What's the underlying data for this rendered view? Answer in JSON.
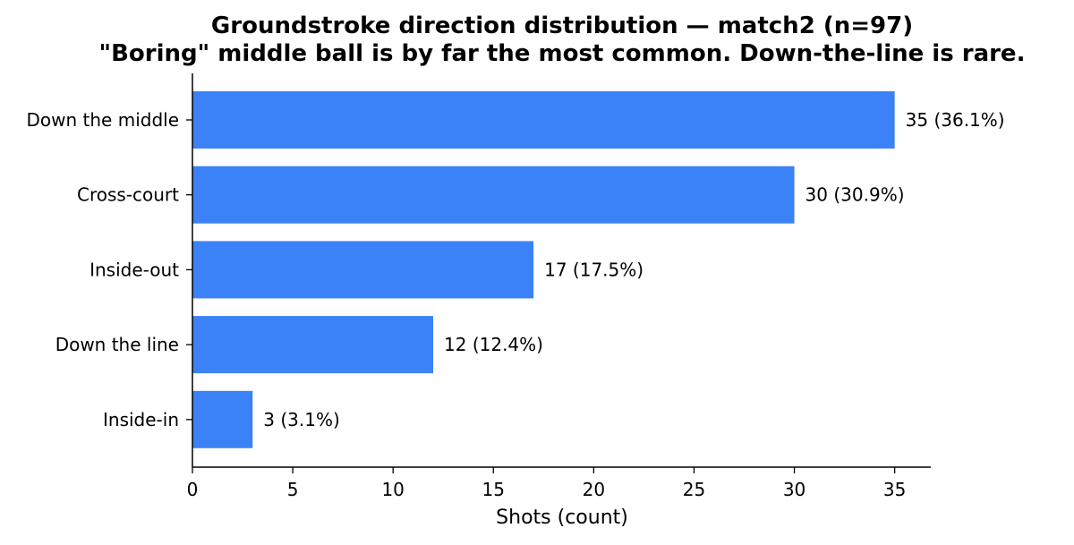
{
  "chart_data": {
    "type": "bar",
    "orientation": "horizontal",
    "title": "Groundstroke direction distribution — match2 (n=97)",
    "subtitle": "\"Boring\" middle ball is by far the most common. Down-the-line is rare.",
    "xlabel": "Shots (count)",
    "ylabel": "",
    "categories": [
      "Down the middle",
      "Cross-court",
      "Inside-out",
      "Down the line",
      "Inside-in"
    ],
    "values": [
      35,
      30,
      17,
      12,
      3
    ],
    "data_labels": [
      "35  (36.1%)",
      "30  (30.9%)",
      "17  (17.5%)",
      "12  (12.4%)",
      "3  (3.1%)"
    ],
    "xlim": [
      0,
      36.8
    ],
    "xticks": [
      0,
      5,
      10,
      15,
      20,
      25,
      30,
      35
    ],
    "xtick_labels": [
      "0",
      "5",
      "10",
      "15",
      "20",
      "25",
      "30",
      "35"
    ],
    "grid": false,
    "legend": "none",
    "bar_color": "#3b82f6"
  }
}
